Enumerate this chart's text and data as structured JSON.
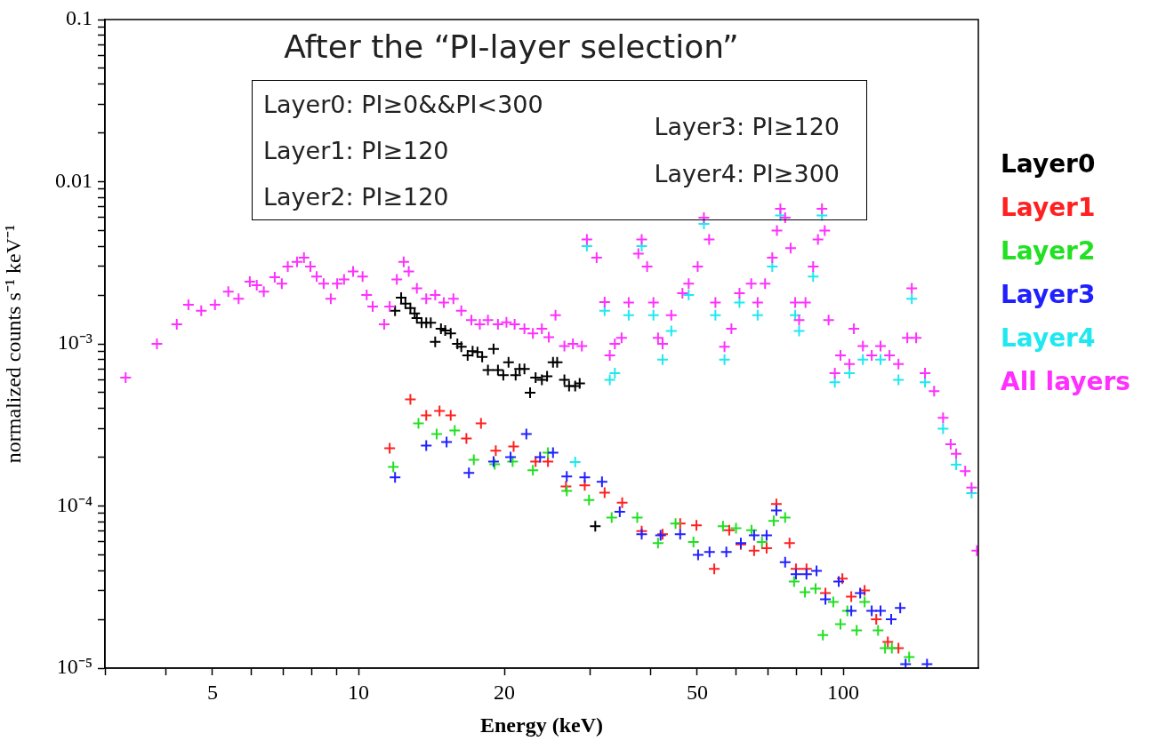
{
  "chart_data": {
    "type": "scatter",
    "title": "After the “PI-layer selection”",
    "xlabel": "Energy (keV)",
    "ylabel": "normalized counts s⁻¹ keV⁻¹",
    "annotations": [
      "Layer0: PI≥0&&PI<300",
      "Layer1: PI≥120",
      "Layer2: PI≥120",
      "Layer3: PI≥120",
      "Layer4: PI≥300"
    ],
    "log": "xy",
    "legend": "right",
    "marker": "cross",
    "xlim": [
      3,
      190
    ],
    "ylim": [
      1e-05,
      0.1
    ],
    "xticks": [
      {
        "value": 3,
        "label": null
      },
      {
        "value": 4,
        "label": null
      },
      5,
      {
        "value": 6,
        "label": null
      },
      {
        "value": 7,
        "label": null
      },
      {
        "value": 8,
        "label": null
      },
      {
        "value": 9,
        "label": null
      },
      10,
      20,
      {
        "value": 30,
        "label": null
      },
      {
        "value": 40,
        "label": null
      },
      50,
      {
        "value": 60,
        "label": null
      },
      {
        "value": 70,
        "label": null
      },
      {
        "value": 80,
        "label": null
      },
      {
        "value": 90,
        "label": null
      },
      100
    ],
    "yticks": [
      {
        "value": 1e-05,
        "label": "10⁻⁵"
      },
      {
        "value": 2e-05,
        "label": null
      },
      {
        "value": 3e-05,
        "label": null
      },
      {
        "value": 4e-05,
        "label": null
      },
      {
        "value": 5e-05,
        "label": null
      },
      {
        "value": 6e-05,
        "label": null
      },
      {
        "value": 7e-05,
        "label": null
      },
      {
        "value": 8e-05,
        "label": null
      },
      {
        "value": 9e-05,
        "label": null
      },
      {
        "value": 0.0001,
        "label": "10⁻⁴"
      },
      {
        "value": 0.0002,
        "label": null
      },
      {
        "value": 0.0003,
        "label": null
      },
      {
        "value": 0.0004,
        "label": null
      },
      {
        "value": 0.0005,
        "label": null
      },
      {
        "value": 0.0006,
        "label": null
      },
      {
        "value": 0.0007,
        "label": null
      },
      {
        "value": 0.0008,
        "label": null
      },
      {
        "value": 0.0009,
        "label": null
      },
      {
        "value": 0.001,
        "label": "10⁻³"
      },
      {
        "value": 0.002,
        "label": null
      },
      {
        "value": 0.003,
        "label": null
      },
      {
        "value": 0.004,
        "label": null
      },
      {
        "value": 0.005,
        "label": null
      },
      {
        "value": 0.006,
        "label": null
      },
      {
        "value": 0.007,
        "label": null
      },
      {
        "value": 0.008,
        "label": null
      },
      {
        "value": 0.009,
        "label": null
      },
      0.01,
      {
        "value": 0.02,
        "label": null
      },
      {
        "value": 0.03,
        "label": null
      },
      {
        "value": 0.04,
        "label": null
      },
      {
        "value": 0.05,
        "label": null
      },
      {
        "value": 0.06,
        "label": null
      },
      {
        "value": 0.07,
        "label": null
      },
      {
        "value": 0.08,
        "label": null
      },
      {
        "value": 0.09,
        "label": null
      },
      0.1
    ],
    "series": [
      {
        "name": "Layer0",
        "color": "#000000",
        "x": [
          11.9,
          12.25,
          12.5,
          12.8,
          13.06,
          13.2,
          13.5,
          13.8,
          14.1,
          14.4,
          14.8,
          15.1,
          15.5,
          16.0,
          16.3,
          16.8,
          17.2,
          17.6,
          18.0,
          18.5,
          19.0,
          19.4,
          19.9,
          20.4,
          21.1,
          21.5,
          22.0,
          22.6,
          23.2,
          23.9,
          24.5,
          25.2,
          25.7,
          26.6,
          27.2,
          28.0,
          28.6,
          30.8
        ],
        "values": [
          0.0016,
          0.00193,
          0.00177,
          0.00166,
          0.00154,
          0.00144,
          0.00135,
          0.00135,
          0.00135,
          0.00103,
          0.00124,
          0.00121,
          0.00116,
          0.001,
          0.00096,
          0.00085,
          0.0009,
          0.00089,
          0.00083,
          0.00069,
          0.00093,
          0.00069,
          0.00064,
          0.00077,
          0.00064,
          0.0007,
          0.0007,
          0.0005,
          0.00062,
          0.0006,
          0.00063,
          0.00077,
          0.00077,
          0.0006,
          0.00055,
          0.00055,
          0.00057,
          7.5e-05
        ]
      },
      {
        "name": "Layer1",
        "color": "#ff2020",
        "x": [
          11.6,
          12.8,
          13.8,
          14.7,
          15.5,
          16.7,
          17.9,
          19.2,
          20.9,
          23.2,
          24.6,
          26.8,
          29.3,
          32.2,
          35.0,
          38.4,
          42.4,
          46.1,
          49.8,
          54.2,
          58.2,
          61.5,
          65.5,
          69.5,
          72.8,
          77.5,
          79.9,
          84.0,
          91.9,
          99.6,
          103.9,
          110.7,
          117,
          123.6,
          130
        ],
        "values": [
          0.000227,
          0.000455,
          0.000362,
          0.000386,
          0.000362,
          0.000261,
          0.000323,
          0.000219,
          0.000233,
          0.000188,
          0.000188,
          0.000132,
          0.000134,
          0.000121,
          0.000105,
          7e-05,
          6.7e-05,
          7.8e-05,
          7.6e-05,
          4.1e-05,
          7.1e-05,
          5.8e-05,
          5.3e-05,
          5.5e-05,
          0.000103,
          5.9e-05,
          4.1e-05,
          4.1e-05,
          2.9e-05,
          3.56e-05,
          2.76e-05,
          3.02e-05,
          2e-05,
          1.45e-05,
          1.33e-05
        ]
      },
      {
        "name": "Layer2",
        "color": "#22e022",
        "x": [
          11.8,
          13.3,
          14.5,
          15.8,
          17.3,
          19.1,
          20.8,
          22.9,
          24.6,
          26.9,
          29.9,
          33.3,
          37.6,
          41.5,
          45.1,
          49.1,
          56.5,
          60.1,
          64.7,
          68.0,
          71.9,
          75.9,
          79.2,
          83.4,
          87.7,
          90.8,
          95.4,
          98.7,
          102,
          106.6,
          110.7,
          118,
          122,
          126,
          136.8
        ],
        "values": [
          0.000174,
          0.000323,
          0.000278,
          0.000292,
          0.000193,
          0.000181,
          0.000188,
          0.000166,
          0.000213,
          0.000124,
          0.000109,
          8.5e-05,
          8.5e-05,
          5.9e-05,
          7.8e-05,
          6e-05,
          7.5e-05,
          7.3e-05,
          7.1e-05,
          6e-05,
          8.1e-05,
          8.5e-05,
          3.42e-05,
          2.94e-05,
          3.09e-05,
          1.6e-05,
          2.56e-05,
          1.87e-05,
          2.26e-05,
          1.71e-05,
          2.56e-05,
          1.71e-05,
          1.33e-05,
          1.33e-05,
          1.17e-05
        ]
      },
      {
        "name": "Layer3",
        "color": "#2020ff",
        "x": [
          11.9,
          13.8,
          15.2,
          16.9,
          19.0,
          20.6,
          22.2,
          23.7,
          25.2,
          26.9,
          29.3,
          31.8,
          34.6,
          38.4,
          42.0,
          46.1,
          50.2,
          53.0,
          57.4,
          61.5,
          65.5,
          69.5,
          72.8,
          75.9,
          79.9,
          84.0,
          88.1,
          91.9,
          97.9,
          103.9,
          108.4,
          114.5,
          119.4,
          125.6,
          131.1,
          134.5,
          148.9
        ],
        "values": [
          0.00015,
          0.000236,
          0.000248,
          0.00016,
          0.000188,
          0.0002,
          0.000278,
          0.0002,
          0.000213,
          0.000152,
          0.00015,
          0.000141,
          9.2e-05,
          6.7e-05,
          6.6e-05,
          6.7e-05,
          5e-05,
          5.2e-05,
          5.2e-05,
          5.9e-05,
          6.6e-05,
          6.6e-05,
          9.4e-05,
          4.5e-05,
          3.8e-05,
          3.8e-05,
          3.98e-05,
          2.66e-05,
          3.42e-05,
          2.26e-05,
          2.9e-05,
          2.26e-05,
          2.26e-05,
          2e-05,
          2.35e-05,
          1.06e-05,
          1.06e-05
        ]
      },
      {
        "name": "Layer4",
        "color": "#20e8f0",
        "x": [
          28.0,
          29.6,
          32.2,
          33.0,
          33.8,
          36.1,
          38.4,
          40.6,
          42.4,
          44.2,
          48.0,
          51.6,
          54.5,
          56.9,
          61.1,
          66.6,
          71.4,
          74.2,
          79.6,
          81.1,
          86.7,
          90.4,
          96.1,
          103,
          109.8,
          119.4,
          130,
          138.5,
          147.5,
          160.7,
          171,
          184
        ],
        "values": [
          0.000187,
          0.004,
          0.0016,
          0.0006,
          0.00066,
          0.0015,
          0.004,
          0.0015,
          0.0008,
          0.0012,
          0.002,
          0.0055,
          0.0015,
          0.0008,
          0.0018,
          0.0015,
          0.003,
          0.0062,
          0.0015,
          0.0012,
          0.0026,
          0.0062,
          0.00058,
          0.00066,
          0.0008,
          0.0008,
          0.0006,
          0.0019,
          0.00058,
          0.0003,
          0.00018,
          0.00012
        ]
      },
      {
        "name": "All layers",
        "color": "#ff30ff",
        "x": [
          3.31,
          3.84,
          4.22,
          4.46,
          4.74,
          5.06,
          5.39,
          5.66,
          5.97,
          6.17,
          6.38,
          6.72,
          6.95,
          7.15,
          7.47,
          7.72,
          7.96,
          8.2,
          8.48,
          8.77,
          9.04,
          9.34,
          9.75,
          10.2,
          10.4,
          10.7,
          11.3,
          11.6,
          12.0,
          12.4,
          12.7,
          13.2,
          13.8,
          14.4,
          15.0,
          15.7,
          16.3,
          17.1,
          17.8,
          18.5,
          19.4,
          20.2,
          21.0,
          22.0,
          22.9,
          23.9,
          24.7,
          25.5,
          26.6,
          27.7,
          28.9,
          29.6,
          31.0,
          32.2,
          33.0,
          33.8,
          34.9,
          36.1,
          37.8,
          38.4,
          39.4,
          40.6,
          41.5,
          42.4,
          44.2,
          46.6,
          48.0,
          50.1,
          51.6,
          52.9,
          54.5,
          56.9,
          58.8,
          61.1,
          64.6,
          66.6,
          69.0,
          71.4,
          73.0,
          74.2,
          75.9,
          77.9,
          79.6,
          81.1,
          83.6,
          86.7,
          88.7,
          90.4,
          91.6,
          93.3,
          96.1,
          98.7,
          103,
          105.2,
          109.8,
          114.5,
          119.4,
          124.6,
          130,
          135.6,
          138.5,
          141.4,
          147.5,
          154,
          160.7,
          166.6,
          171,
          178.5,
          184,
          188.7
        ],
        "values": [
          0.00062,
          0.001,
          0.00132,
          0.00174,
          0.0016,
          0.00174,
          0.0021,
          0.0019,
          0.00242,
          0.0023,
          0.0021,
          0.00258,
          0.00235,
          0.003,
          0.0032,
          0.0034,
          0.003,
          0.0026,
          0.00235,
          0.0019,
          0.00235,
          0.0025,
          0.0028,
          0.0026,
          0.002,
          0.0017,
          0.00132,
          0.0017,
          0.0025,
          0.0032,
          0.0028,
          0.0022,
          0.0019,
          0.002,
          0.0018,
          0.0019,
          0.0016,
          0.0014,
          0.00132,
          0.0014,
          0.00132,
          0.00136,
          0.00132,
          0.00124,
          0.00116,
          0.00124,
          0.0011,
          0.0015,
          0.00097,
          0.001,
          0.00097,
          0.0044,
          0.0034,
          0.00181,
          0.00085,
          0.001,
          0.00109,
          0.0018,
          0.0036,
          0.0044,
          0.003,
          0.0018,
          0.00109,
          0.001,
          0.0015,
          0.00205,
          0.00235,
          0.003,
          0.006,
          0.0044,
          0.0018,
          0.00096,
          0.00124,
          0.00205,
          0.00235,
          0.0018,
          0.00235,
          0.0034,
          0.005,
          0.0068,
          0.006,
          0.0039,
          0.0018,
          0.0014,
          0.0018,
          0.003,
          0.0044,
          0.0068,
          0.005,
          0.0014,
          0.00066,
          0.00085,
          0.00075,
          0.00124,
          0.00097,
          0.00085,
          0.00097,
          0.00085,
          0.00075,
          0.00109,
          0.0022,
          0.00109,
          0.00066,
          0.00051,
          0.00035,
          0.00024,
          0.00021,
          0.000164,
          0.00013,
          5.3e-05
        ]
      }
    ]
  }
}
